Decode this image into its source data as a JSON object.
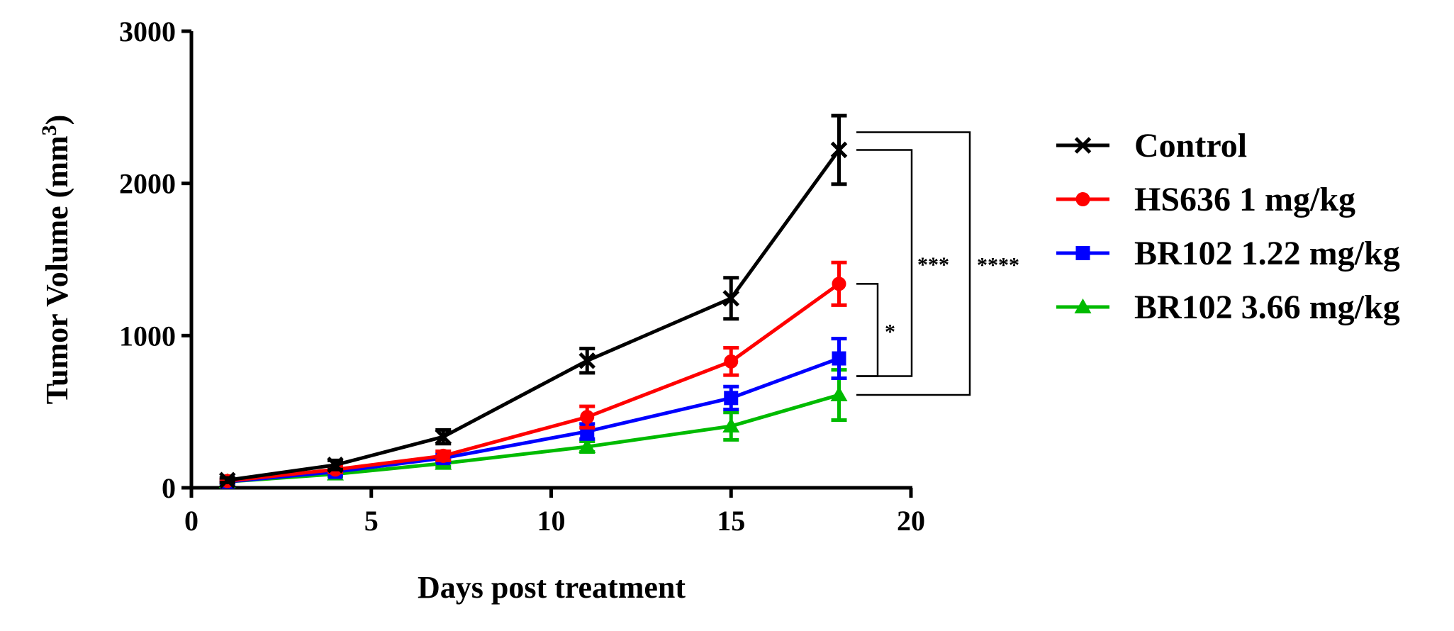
{
  "chart_data": {
    "type": "line",
    "xlabel": "Days post treatment",
    "ylabel": "Tumor Volume (mm",
    "ylabel_superscript": "3",
    "ylabel_close": ")",
    "xlim": [
      0,
      20
    ],
    "ylim": [
      0,
      3000
    ],
    "xticks": [
      0,
      5,
      10,
      15,
      20
    ],
    "yticks": [
      0,
      1000,
      2000,
      3000
    ],
    "legend_position": "right",
    "x": [
      1,
      4,
      7,
      11,
      15,
      18
    ],
    "series": [
      {
        "name": "Control",
        "color": "#000000",
        "marker": "x",
        "values": [
          50,
          150,
          335,
          835,
          1245,
          2220
        ],
        "errors": [
          15,
          30,
          45,
          80,
          135,
          225
        ]
      },
      {
        "name": "HS636 1 mg/kg",
        "color": "#ff0000",
        "marker": "circle",
        "values": [
          45,
          120,
          210,
          465,
          830,
          1340
        ],
        "errors": [
          10,
          20,
          30,
          70,
          90,
          140
        ]
      },
      {
        "name": "BR102 1.22 mg/kg",
        "color": "#0000ff",
        "marker": "square",
        "values": [
          40,
          105,
          195,
          370,
          590,
          850
        ],
        "errors": [
          10,
          20,
          25,
          50,
          75,
          130
        ]
      },
      {
        "name": "BR102 3.66 mg/kg",
        "color": "#00bb00",
        "marker": "triangle",
        "values": [
          40,
          90,
          160,
          270,
          405,
          610
        ],
        "errors": [
          10,
          15,
          20,
          35,
          90,
          165
        ]
      }
    ],
    "significance": [
      {
        "label": "*",
        "from": "HS636 1 mg/kg",
        "to": "BR102 1.22 mg/kg"
      },
      {
        "label": "***",
        "from": "Control",
        "to": "BR102 1.22 mg/kg"
      },
      {
        "label": "****",
        "from": "Control",
        "to": "BR102 3.66 mg/kg"
      }
    ]
  }
}
